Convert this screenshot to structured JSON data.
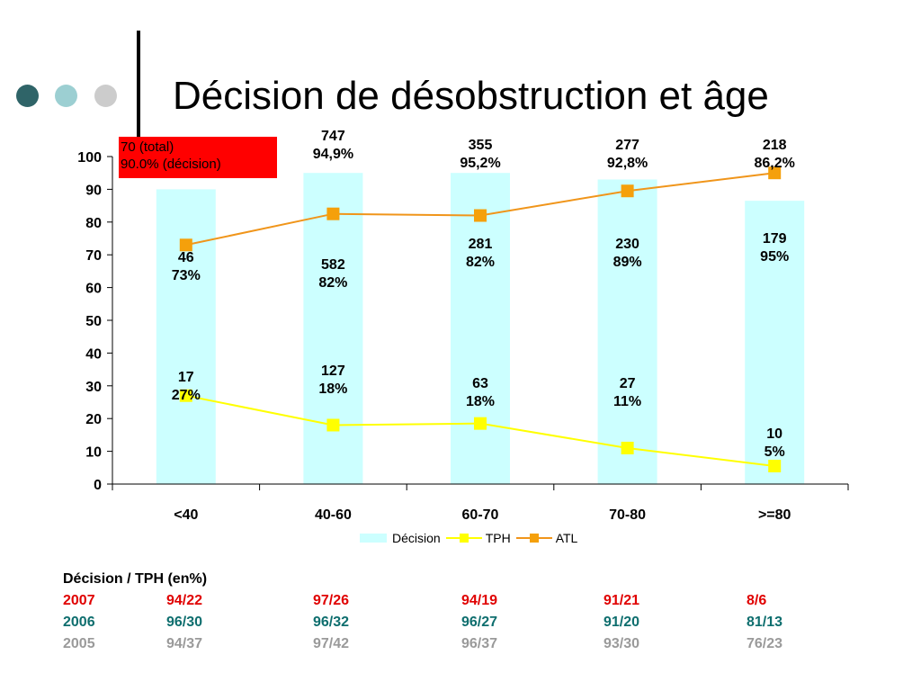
{
  "title": "Décision de désobstruction et âge",
  "colors": {
    "dot1": "#2f6468",
    "dot2": "#9ccfd2",
    "dot3": "#cccccc",
    "bar": "#ccffff",
    "tph": "#ffff00",
    "atl": "#f0951a",
    "marker_atl": "#f5a00b",
    "annot_bg": "#ff0000",
    "year2007": "#e00000",
    "year2006": "#0e6e6e",
    "year2005": "#9a9a9a"
  },
  "annotation": {
    "line1": "70 (total)",
    "line2": "90.0% (décision)"
  },
  "chart_data": {
    "type": "bar",
    "categories": [
      "<40",
      "40-60",
      "60-70",
      "70-80",
      ">=80"
    ],
    "ylim": [
      0,
      100
    ],
    "yticks": [
      "0",
      "10",
      "20",
      "30",
      "40",
      "50",
      "60",
      "70",
      "80",
      "90",
      "100"
    ],
    "series": [
      {
        "name": "Décision",
        "type": "bar",
        "values": [
          90,
          95,
          95,
          93,
          86.5
        ]
      },
      {
        "name": "TPH",
        "type": "line",
        "values": [
          27,
          18,
          18.5,
          11,
          5.5
        ]
      },
      {
        "name": "ATL",
        "type": "line",
        "values": [
          73,
          82.5,
          82,
          89.5,
          95
        ]
      }
    ],
    "top_labels": [
      {
        "line1": "",
        "line2": ""
      },
      {
        "line1": "747",
        "line2": "94,9%"
      },
      {
        "line1": "355",
        "line2": "95,2%"
      },
      {
        "line1": "277",
        "line2": "92,8%"
      },
      {
        "line1": "218",
        "line2": "86,2%"
      }
    ],
    "atl_labels": [
      {
        "line1": "46",
        "line2": "73%"
      },
      {
        "line1": "582",
        "line2": "82%"
      },
      {
        "line1": "281",
        "line2": "82%"
      },
      {
        "line1": "230",
        "line2": "89%"
      },
      {
        "line1": "179",
        "line2": "95%"
      }
    ],
    "tph_labels": [
      {
        "line1": "17",
        "line2": "27%"
      },
      {
        "line1": "127",
        "line2": "18%"
      },
      {
        "line1": "63",
        "line2": "18%"
      },
      {
        "line1": "27",
        "line2": "11%"
      },
      {
        "line1": "10",
        "line2": "5%"
      }
    ],
    "legend": [
      "Décision",
      "TPH",
      "ATL"
    ],
    "legend_position": "bottom"
  },
  "table": {
    "header": "Décision / TPH (en%)",
    "rows": [
      {
        "year": "2007",
        "values": [
          "94/22",
          "97/26",
          "94/19",
          "91/21",
          "8/6"
        ]
      },
      {
        "year": "2006",
        "values": [
          "96/30",
          "96/32",
          "96/27",
          "91/20",
          "81/13"
        ]
      },
      {
        "year": "2005",
        "values": [
          "94/37",
          "97/42",
          "96/37",
          "93/30",
          "76/23"
        ]
      }
    ]
  }
}
